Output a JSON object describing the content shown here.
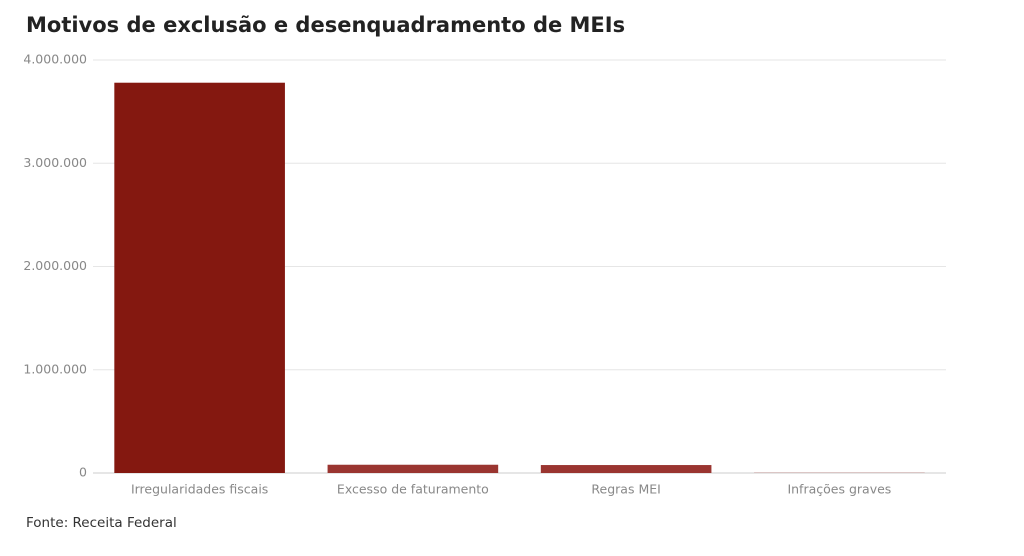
{
  "chart_data": {
    "type": "bar",
    "title": "Motivos de exclusão e desenquadramento de MEIs",
    "categories": [
      "Irregularidades fiscais",
      "Excesso de faturamento",
      "Regras MEI",
      "Infrações graves"
    ],
    "values": [
      3780000,
      80000,
      77000,
      2000
    ],
    "colors": [
      "#841810",
      "#9a3530",
      "#9a3530",
      "#9a3530"
    ],
    "ylim": [
      0,
      4000000
    ],
    "yticks": [
      0,
      {
        "value": 1000000,
        "label": "1.000.000"
      },
      {
        "value": 2000000,
        "label": "2.000.000"
      },
      {
        "value": 3000000,
        "label": "3.000.000"
      },
      {
        "value": 4000000,
        "label": "4.000.000"
      }
    ],
    "grid": true,
    "source": "Fonte: Receita Federal"
  }
}
